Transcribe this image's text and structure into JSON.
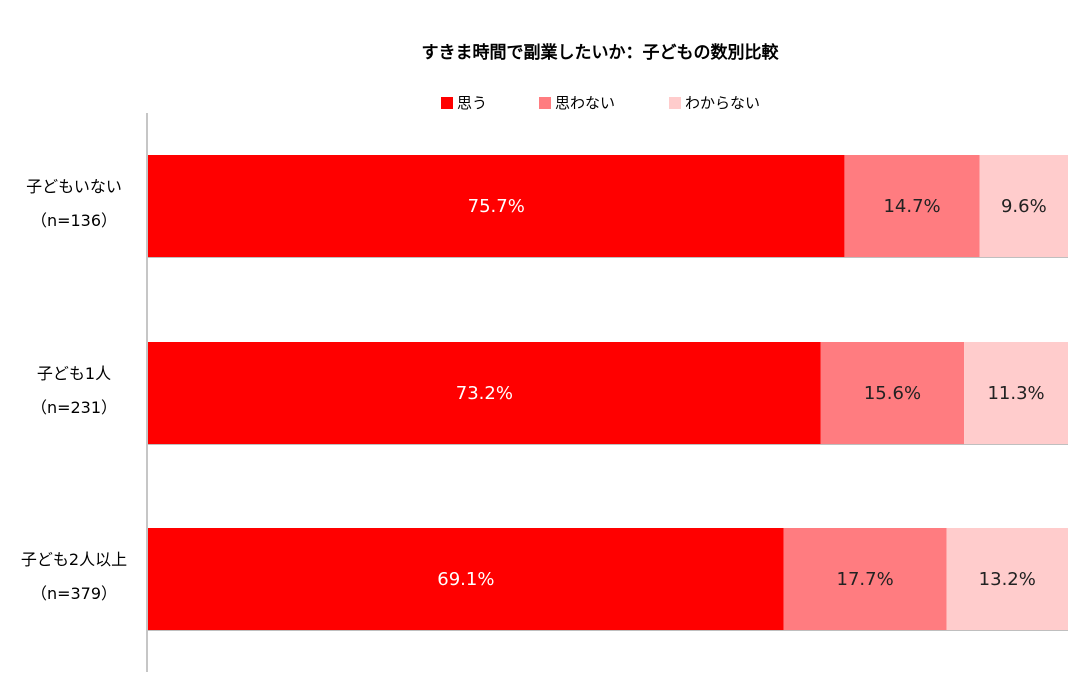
{
  "chart_data": {
    "type": "bar",
    "orientation": "horizontal",
    "stacked": true,
    "percent": true,
    "title": "すきま時間で副業したいか：子どもの数別比較",
    "categories": [
      {
        "label": "子どもいない",
        "n": "（n=136）"
      },
      {
        "label": "子ども1人",
        "n": "（n=231）"
      },
      {
        "label": "子ども2人以上",
        "n": "（n=379）"
      }
    ],
    "series": [
      {
        "name": "思う",
        "color": "#ff0000",
        "label_color": "#ffffff",
        "values": [
          75.7,
          73.2,
          69.1
        ]
      },
      {
        "name": "思わない",
        "color": "#ff7c80",
        "label_color": "#222222",
        "values": [
          14.7,
          15.6,
          17.7
        ]
      },
      {
        "name": "わからない",
        "color": "#ffcccc",
        "label_color": "#222222",
        "values": [
          9.6,
          11.3,
          13.2
        ]
      }
    ],
    "value_suffix": "%",
    "xlim": [
      0,
      100
    ],
    "legend_position": "top",
    "grid": false
  }
}
